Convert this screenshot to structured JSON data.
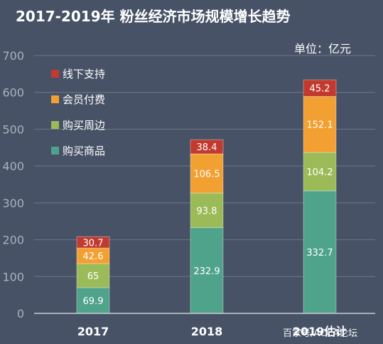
{
  "chart_data": {
    "type": "bar",
    "stacked": true,
    "title": "2017-2019年 粉丝经济市场规模增长趋势",
    "unit_label": "单位：亿元",
    "categories": [
      "2017",
      "2018",
      "2019估计"
    ],
    "ylim": [
      0,
      700
    ],
    "yticks": [
      0,
      100,
      200,
      300,
      400,
      500,
      600,
      700
    ],
    "grid": true,
    "legend_position": "top-left",
    "series": [
      {
        "name": "购买商品",
        "values": [
          69.9,
          232.9,
          332.7
        ],
        "labels": [
          "69.9",
          "232.9",
          "332.7"
        ],
        "color": "#4fa38a"
      },
      {
        "name": "购买周边",
        "values": [
          65,
          93.8,
          104.2
        ],
        "labels": [
          "65",
          "93.8",
          "104.2"
        ],
        "color": "#9bbb59"
      },
      {
        "name": "会员付费",
        "values": [
          42.6,
          106.5,
          152.1
        ],
        "labels": [
          "42.6",
          "106.5",
          "152.1"
        ],
        "color": "#f3a032"
      },
      {
        "name": "线下支持",
        "values": [
          30.7,
          38.4,
          45.2
        ],
        "labels": [
          "30.7",
          "38.4",
          "45.2"
        ],
        "color": "#c23a2f"
      }
    ],
    "legend_order": [
      "线下支持",
      "会员付费",
      "购买周边",
      "购买商品"
    ]
  },
  "watermark": "百家号/ACCA论坛"
}
